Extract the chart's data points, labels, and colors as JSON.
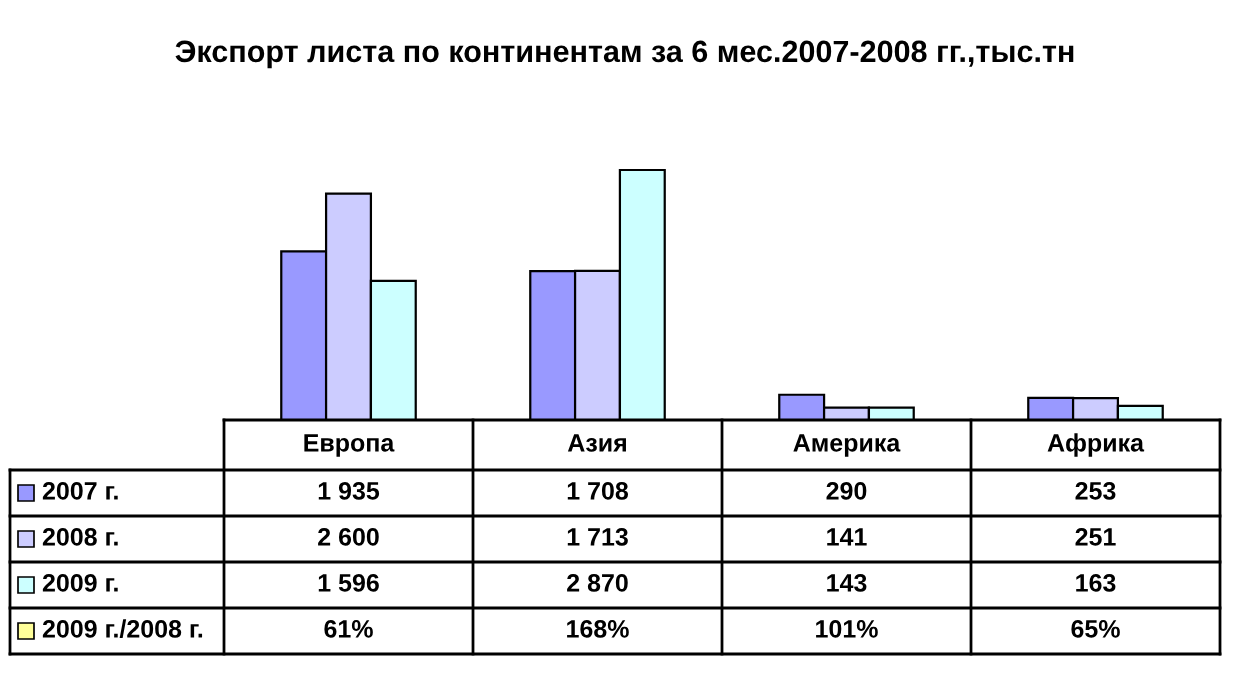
{
  "chart_data": {
    "type": "bar",
    "title": "Экспорт листа по континентам за 6 мес.2007-2008 гг.,тыс.тн",
    "categories": [
      "Европа",
      "Азия",
      "Америка",
      "Африка"
    ],
    "series": [
      {
        "name": "2007 г.",
        "color": "#9999ff",
        "values": [
          1935,
          1708,
          290,
          253
        ],
        "value_labels": [
          "1 935",
          "1 708",
          "290",
          "253"
        ]
      },
      {
        "name": "2008 г.",
        "color": "#ccccff",
        "values": [
          2600,
          1713,
          141,
          251
        ],
        "value_labels": [
          "2 600",
          "1 713",
          "141",
          "251"
        ]
      },
      {
        "name": "2009 г.",
        "color": "#ccffff",
        "values": [
          1596,
          2870,
          143,
          163
        ],
        "value_labels": [
          "1 596",
          "2 870",
          "143",
          "163"
        ]
      },
      {
        "name": "2009 г./2008 г.",
        "color": "#ffff99",
        "values": [
          null,
          null,
          null,
          null
        ],
        "value_labels": [
          "61%",
          "168%",
          "101%",
          "65%"
        ]
      }
    ],
    "legend": "bottom left"
  }
}
